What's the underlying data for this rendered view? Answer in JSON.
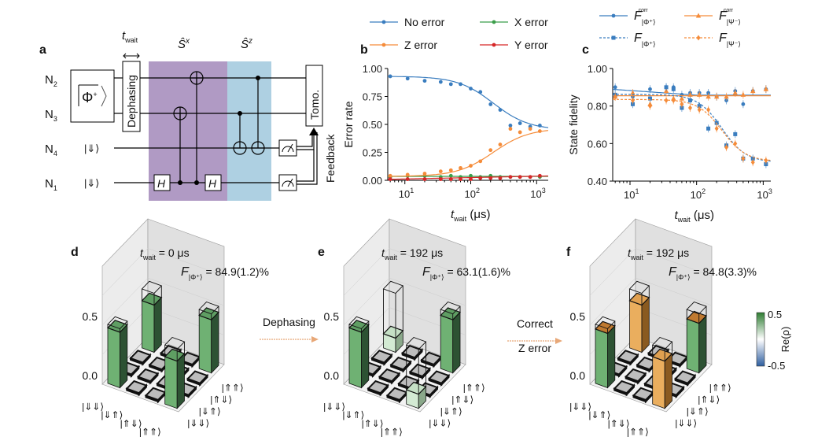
{
  "panels": {
    "a": "a",
    "b": "b",
    "c": "c",
    "d": "d",
    "e": "e",
    "f": "f"
  },
  "circuit": {
    "qubits": [
      {
        "n": "N",
        "sub": "2"
      },
      {
        "n": "N",
        "sub": "3"
      },
      {
        "n": "N",
        "sub": "4"
      },
      {
        "n": "N",
        "sub": "1"
      }
    ],
    "bell_state": "Φ",
    "bell_sup": "+",
    "ancilla_state": "|⇓⟩",
    "twait_t": "t",
    "twait_sub": "wait",
    "dephasing": "Dephasing",
    "sx": "Ŝ",
    "sx_sup": "x",
    "sz": "Ŝ",
    "sz_sup": "z",
    "hadamard": "H",
    "tomo": "Tomo.",
    "feedback": "Feedback",
    "colors": {
      "sx_region": "#b09ac4",
      "sz_region": "#aed0e2"
    }
  },
  "chart_data": [
    {
      "type": "scatter",
      "id": "b",
      "xlabel": "t",
      "xlabel_sub": "wait",
      "xlabel_unit": "(μs)",
      "ylabel": "Error rate",
      "xscale": "log",
      "xlim": [
        5.5,
        1500
      ],
      "ylim": [
        0,
        1
      ],
      "yticks": [
        "0.00",
        "0.25",
        "0.50",
        "0.75",
        "1.00"
      ],
      "xticks": [
        {
          "base": "10",
          "exp": "1",
          "v": 10
        },
        {
          "base": "10",
          "exp": "2",
          "v": 100
        },
        {
          "base": "10",
          "exp": "3",
          "v": 1000
        }
      ],
      "legend_placement": "top",
      "x": [
        6,
        11,
        20,
        35,
        50,
        70,
        100,
        140,
        200,
        280,
        400,
        560,
        800,
        1120
      ],
      "series": [
        {
          "name": "No error",
          "color": "#3a7dbf",
          "values": [
            0.93,
            0.91,
            0.89,
            0.88,
            0.86,
            0.86,
            0.82,
            0.79,
            0.68,
            0.63,
            0.49,
            0.51,
            0.48,
            0.49
          ]
        },
        {
          "name": "X error",
          "color": "#3b9e4a",
          "values": [
            0.03,
            0.04,
            0.04,
            0.03,
            0.04,
            0.03,
            0.04,
            0.03,
            0.04,
            0.03,
            0.03,
            0.03,
            0.03,
            0.03
          ]
        },
        {
          "name": "Z error",
          "color": "#f58c3a",
          "values": [
            0.04,
            0.05,
            0.06,
            0.08,
            0.09,
            0.11,
            0.13,
            0.17,
            0.27,
            0.32,
            0.46,
            0.43,
            0.46,
            0.44
          ]
        },
        {
          "name": "Y error",
          "color": "#d62728",
          "values": [
            0.01,
            0.01,
            0.01,
            0.01,
            0.01,
            0.01,
            0.01,
            0.02,
            0.02,
            0.02,
            0.03,
            0.03,
            0.03,
            0.04
          ]
        }
      ]
    },
    {
      "type": "scatter",
      "id": "c",
      "xlabel": "t",
      "xlabel_sub": "wait",
      "xlabel_unit": "(μs)",
      "ylabel": "State fidelity",
      "xscale": "log",
      "xlim": [
        5.5,
        1300
      ],
      "ylim": [
        0.4,
        1.0
      ],
      "yticks": [
        "0.40",
        "0.60",
        "0.80",
        "1.00"
      ],
      "xticks": [
        {
          "base": "10",
          "exp": "1",
          "v": 10
        },
        {
          "base": "10",
          "exp": "2",
          "v": 100
        },
        {
          "base": "10",
          "exp": "3",
          "v": 1000
        }
      ],
      "legend_placement": "top",
      "x": [
        6,
        11,
        20,
        35,
        45,
        60,
        80,
        110,
        150,
        200,
        280,
        380,
        500,
        700,
        1100
      ],
      "series": [
        {
          "name": "F",
          "sub": "|Φ⁺⟩",
          "sup": "corr",
          "color": "#3a7dbf",
          "dash": false,
          "marker": "circle",
          "values": [
            0.9,
            0.85,
            0.89,
            0.9,
            0.9,
            0.86,
            0.87,
            0.87,
            0.87,
            0.85,
            0.83,
            0.88,
            0.81,
            0.88,
            0.89
          ]
        },
        {
          "name": "F",
          "sub": "|Ψ⁻⟩",
          "sup": "corr",
          "color": "#f58c3a",
          "dash": false,
          "marker": "triangle",
          "values": [
            0.85,
            0.87,
            0.81,
            0.88,
            0.84,
            0.84,
            0.86,
            0.86,
            0.85,
            0.85,
            0.85,
            0.87,
            0.86,
            0.88,
            0.89
          ]
        },
        {
          "name": "F",
          "sub": "|Φ⁺⟩",
          "sup": "",
          "color": "#3a7dbf",
          "dash": true,
          "marker": "square",
          "values": [
            0.86,
            0.81,
            0.84,
            0.9,
            0.89,
            0.79,
            0.83,
            0.8,
            0.68,
            0.71,
            0.59,
            0.65,
            0.52,
            0.52,
            0.49
          ]
        },
        {
          "name": "F",
          "sub": "|Ψ⁻⟩",
          "sup": "",
          "color": "#f58c3a",
          "dash": true,
          "marker": "diamond",
          "values": [
            0.85,
            0.83,
            0.8,
            0.83,
            0.83,
            0.81,
            0.79,
            0.78,
            0.78,
            0.68,
            0.58,
            0.6,
            0.52,
            0.5,
            0.51
          ]
        }
      ]
    }
  ],
  "density": {
    "basis": [
      "|⇓⇓⟩",
      "|⇓⇑⟩",
      "|⇑⇓⟩",
      "|⇑⇑⟩"
    ],
    "zticks": [
      "0.0",
      "0.5"
    ],
    "colorbar": {
      "max": "0.5",
      "min": "-0.5",
      "label": "Re(ρ)"
    },
    "panels": [
      {
        "twait_t": "t",
        "twait_sub": "wait",
        "twait_val": "= 0 μs",
        "F": "F",
        "F_sub": "|Φ⁺⟩",
        "F_val": "= 84.9(1.2)%",
        "matrix": [
          [
            0.47,
            0.01,
            0.01,
            0.4
          ],
          [
            0.01,
            0.02,
            0.01,
            0.01
          ],
          [
            0.01,
            0.01,
            0.02,
            0.01
          ],
          [
            0.4,
            0.01,
            0.01,
            0.45
          ]
        ],
        "bar_color": "green"
      },
      {
        "twait_t": "t",
        "twait_sub": "wait",
        "twait_val": "= 192 μs",
        "F": "F",
        "F_sub": "|Φ⁺⟩",
        "F_val": "= 63.1(1.6)%",
        "matrix": [
          [
            0.47,
            0.01,
            0.01,
            0.12
          ],
          [
            0.01,
            0.02,
            0.03,
            0.01
          ],
          [
            0.01,
            0.03,
            0.02,
            0.01
          ],
          [
            0.12,
            0.01,
            0.01,
            0.45
          ]
        ],
        "bar_color": "green"
      },
      {
        "twait_t": "t",
        "twait_sub": "wait",
        "twait_val": "= 192 μs",
        "F": "F",
        "F_sub": "|Φ⁺⟩",
        "F_val": "= 84.8(3.3)%",
        "matrix": [
          [
            0.46,
            0.01,
            0.01,
            0.4
          ],
          [
            0.01,
            0.02,
            0.02,
            0.01
          ],
          [
            0.01,
            0.02,
            0.02,
            0.01
          ],
          [
            0.4,
            0.01,
            0.01,
            0.42
          ]
        ],
        "bar_color": "orange"
      }
    ],
    "arrows": [
      {
        "top": "Dephasing",
        "bottom": ""
      },
      {
        "top": "Correct",
        "bottom": "Z error"
      }
    ],
    "arrow_color": "#e8a878"
  }
}
